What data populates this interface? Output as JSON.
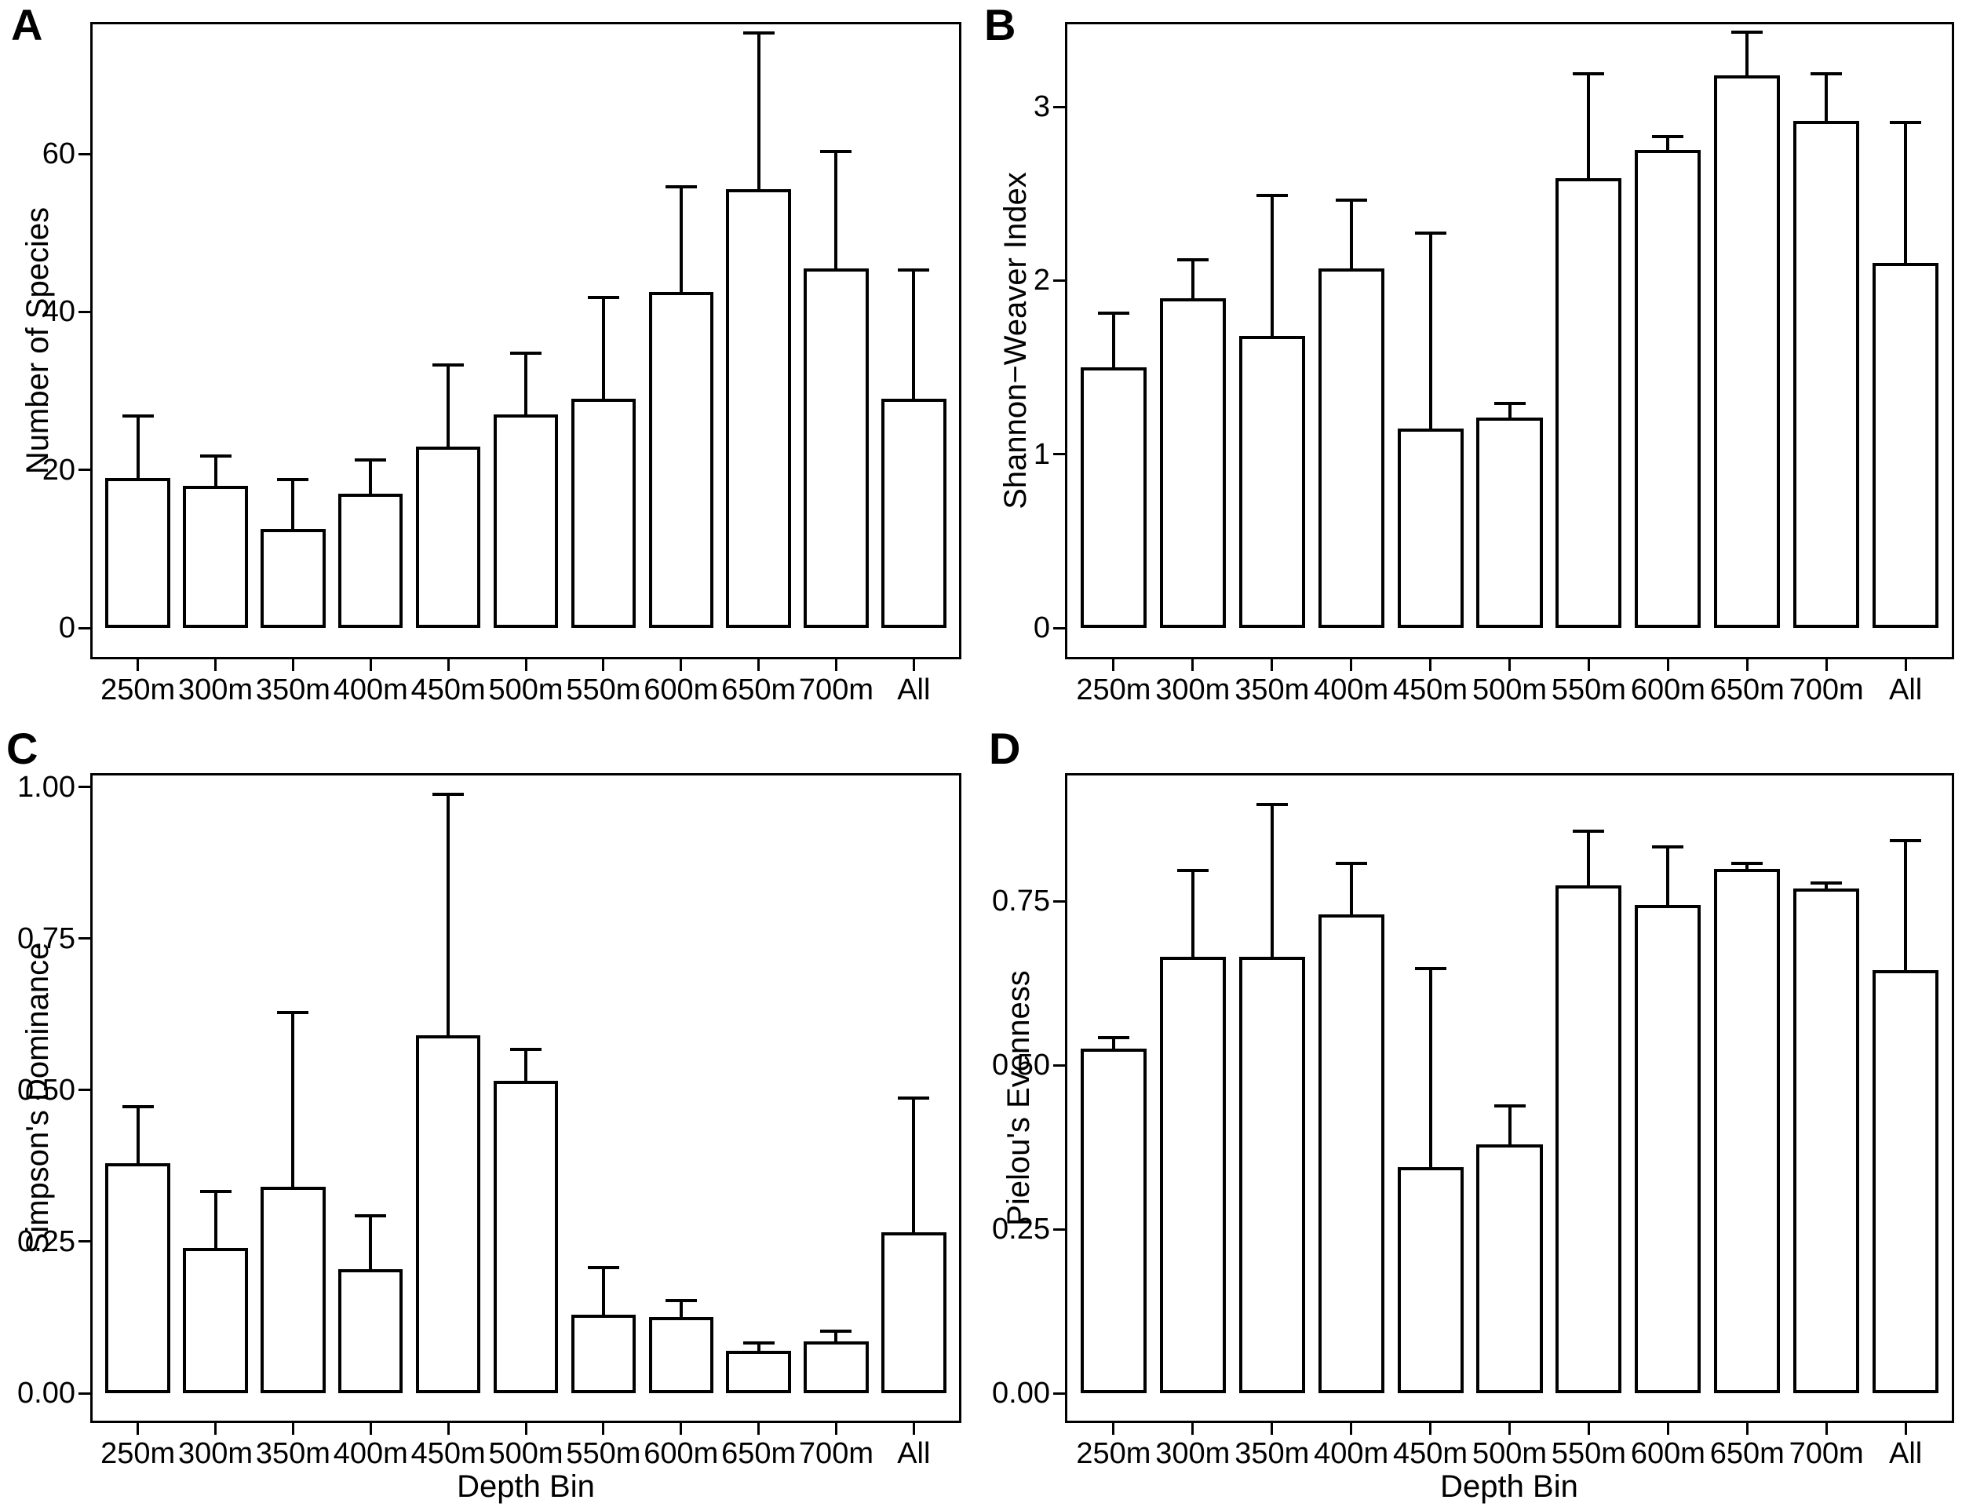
{
  "figure_title": "",
  "chart_data": [
    {
      "type": "bar",
      "panel": "A",
      "title": "",
      "ylabel": "Number of Species",
      "xlabel": "",
      "categories": [
        "250m",
        "300m",
        "350m",
        "400m",
        "450m",
        "500m",
        "550m",
        "600m",
        "650m",
        "700m",
        "All"
      ],
      "values": [
        19,
        18,
        12.5,
        17,
        23,
        27,
        29,
        42.5,
        55.5,
        45.5,
        29
      ],
      "error_top": [
        27,
        22,
        19,
        21.5,
        33.5,
        35,
        42,
        56,
        75.5,
        60.5,
        45.5
      ],
      "ytick_values": [
        0,
        20,
        40,
        60
      ],
      "ytick_labels": [
        "0",
        "20",
        "40",
        "60"
      ],
      "ylim": [
        0,
        76.4
      ],
      "grid": false,
      "legend": "none",
      "bar_fill": "#ffffff",
      "bar_border": "#000000"
    },
    {
      "type": "bar",
      "panel": "B",
      "title": "",
      "ylabel": "Shannon−Weaver Index",
      "xlabel": "",
      "categories": [
        "250m",
        "300m",
        "350m",
        "400m",
        "450m",
        "500m",
        "550m",
        "600m",
        "650m",
        "700m",
        "All"
      ],
      "values": [
        1.5,
        1.9,
        1.68,
        2.07,
        1.15,
        1.21,
        2.59,
        2.75,
        3.18,
        2.92,
        2.1
      ],
      "error_top": [
        1.82,
        2.13,
        2.5,
        2.47,
        2.28,
        1.3,
        3.2,
        2.84,
        3.44,
        3.2,
        2.92
      ],
      "ytick_values": [
        0,
        1,
        2,
        3
      ],
      "ytick_labels": [
        "0",
        "1",
        "2",
        "3"
      ],
      "ylim": [
        0,
        3.475
      ],
      "grid": false,
      "legend": "none",
      "bar_fill": "#ffffff",
      "bar_border": "#000000"
    },
    {
      "type": "bar",
      "panel": "C",
      "title": "",
      "ylabel": "Simpson's Dominance",
      "xlabel": "Depth Bin",
      "categories": [
        "250m",
        "300m",
        "350m",
        "400m",
        "450m",
        "500m",
        "550m",
        "600m",
        "650m",
        "700m",
        "All"
      ],
      "values": [
        0.38,
        0.24,
        0.34,
        0.205,
        0.59,
        0.515,
        0.13,
        0.125,
        0.07,
        0.085,
        0.265
      ],
      "error_top": [
        0.475,
        0.335,
        0.63,
        0.295,
        0.99,
        0.57,
        0.21,
        0.155,
        0.085,
        0.105,
        0.49
      ],
      "ytick_values": [
        0,
        0.25,
        0.5,
        0.75,
        1.0
      ],
      "ytick_labels": [
        "0.00",
        "0.25",
        "0.50",
        "0.75",
        "1.00"
      ],
      "ylim": [
        0,
        1.019
      ],
      "grid": false,
      "legend": "none",
      "bar_fill": "#ffffff",
      "bar_border": "#000000"
    },
    {
      "type": "bar",
      "panel": "D",
      "title": "",
      "ylabel": "Pielou's Evenness",
      "xlabel": "Depth Bin",
      "categories": [
        "250m",
        "300m",
        "350m",
        "400m",
        "450m",
        "500m",
        "550m",
        "600m",
        "650m",
        "700m",
        "All"
      ],
      "values": [
        0.525,
        0.665,
        0.665,
        0.73,
        0.345,
        0.38,
        0.775,
        0.745,
        0.8,
        0.77,
        0.645
      ],
      "error_top": [
        0.545,
        0.8,
        0.9,
        0.81,
        0.65,
        0.44,
        0.86,
        0.835,
        0.81,
        0.78,
        0.845
      ],
      "ytick_values": [
        0,
        0.25,
        0.5,
        0.75
      ],
      "ytick_labels": [
        "0.00",
        "0.25",
        "0.50",
        "0.75"
      ],
      "ylim": [
        0,
        0.942
      ],
      "grid": false,
      "legend": "none",
      "bar_fill": "#ffffff",
      "bar_border": "#000000"
    }
  ]
}
